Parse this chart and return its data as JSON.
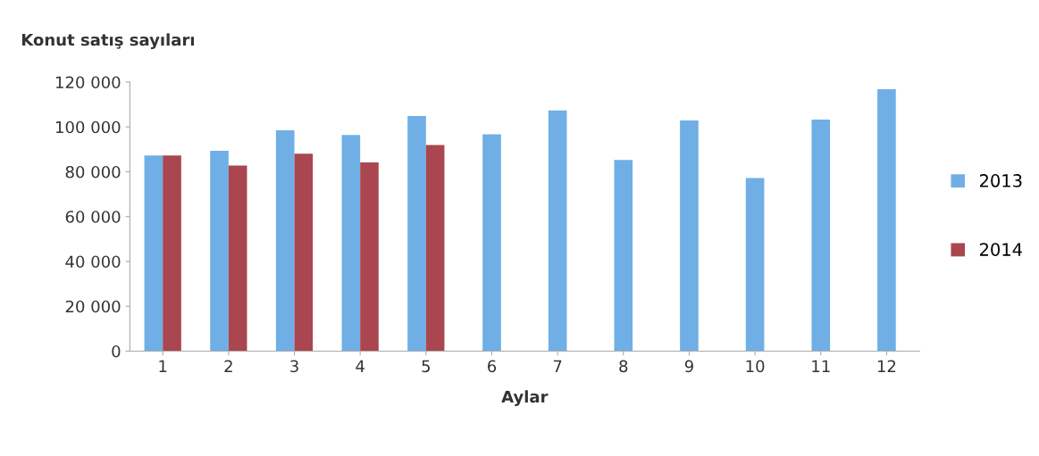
{
  "chart_data": {
    "type": "bar",
    "title": "Konut satış sayıları",
    "xlabel": "Aylar",
    "categories": [
      "1",
      "2",
      "3",
      "4",
      "5",
      "6",
      "7",
      "8",
      "9",
      "10",
      "11",
      "12"
    ],
    "series": [
      {
        "name": "2013",
        "color": "#6fafe5",
        "values": [
          87300,
          89300,
          98500,
          96400,
          104900,
          96700,
          107400,
          85300,
          102900,
          77200,
          103300,
          116800
        ]
      },
      {
        "name": "2014",
        "color": "#a9464f",
        "values": [
          87300,
          82800,
          88100,
          84200,
          91900,
          null,
          null,
          null,
          null,
          null,
          null,
          null
        ]
      }
    ],
    "ylim": [
      0,
      120000
    ],
    "yticks": [
      {
        "value": 0,
        "label": "0"
      },
      {
        "value": 20000,
        "label": "20 000"
      },
      {
        "value": 40000,
        "label": "40 000"
      },
      {
        "value": 60000,
        "label": "60 000"
      },
      {
        "value": 80000,
        "label": "80 000"
      },
      {
        "value": 100000,
        "label": "100 000"
      },
      {
        "value": 120000,
        "label": "120 000"
      }
    ],
    "grid": false,
    "legend": "right"
  }
}
